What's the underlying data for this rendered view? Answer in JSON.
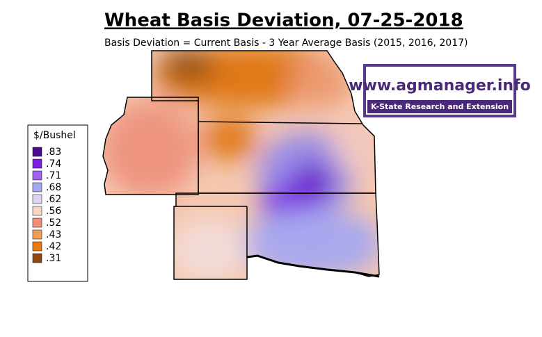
{
  "header": {
    "title": "Wheat Basis Deviation, 07-25-2018",
    "subtitle": "Basis Deviation = Current Basis - 3 Year Average Basis (2015, 2016, 2017)"
  },
  "logo": {
    "url": "www.agmanager.info",
    "org": "K-State Research and Extension"
  },
  "legend": {
    "title": "$/Bushel",
    "items": [
      {
        "label": ".83",
        "color": "#4b0a8c"
      },
      {
        "label": ".74",
        "color": "#7a1ee6"
      },
      {
        "label": ".71",
        "color": "#9d63ee"
      },
      {
        "label": ".68",
        "color": "#a3a8ef"
      },
      {
        "label": ".62",
        "color": "#e0d2f2"
      },
      {
        "label": ".56",
        "color": "#f5d6c4"
      },
      {
        "label": ".52",
        "color": "#f08c78"
      },
      {
        "label": ".43",
        "color": "#f0a050"
      },
      {
        "label": ".42",
        "color": "#e87a10"
      },
      {
        "label": ".31",
        "color": "#8c4a10"
      }
    ]
  }
}
